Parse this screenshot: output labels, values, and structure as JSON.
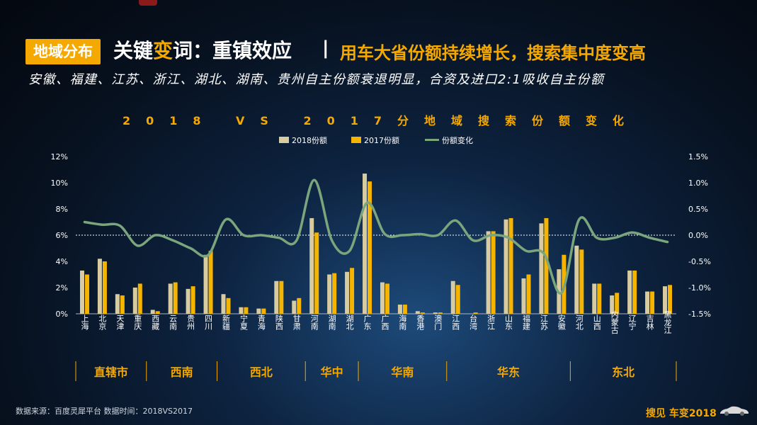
{
  "header": {
    "tag": "地域分布",
    "title_prefix": "关键",
    "title_highlight": "变",
    "title_suffix": "词：重镇效应",
    "separator": "|",
    "title_sub": "用车大省份额持续增长，搜索集中度变高",
    "subtitle": "安徽、福建、江苏、浙江、湖北、湖南、贵州自主份额衰退明显，合资及进口2:1吸收自主份额"
  },
  "footer": {
    "source": "数据来源：百度灵犀平台    数据时间：2018VS2017",
    "brand": "搜见 车变2018"
  },
  "colors": {
    "s2018": "#d8cba0",
    "s2017": "#f5b400",
    "change": "#7ba57c",
    "accent": "#f5a800"
  },
  "chart_data": {
    "type": "bar",
    "title": "2018 VS 2017分地域搜索份额变化",
    "categories": [
      "上海",
      "北京",
      "天津",
      "重庆",
      "西藏",
      "云南",
      "贵州",
      "四川",
      "新疆",
      "宁夏",
      "青海",
      "陕西",
      "甘肃",
      "河南",
      "湖南",
      "湖北",
      "广东",
      "广西",
      "海南",
      "香港",
      "澳门",
      "江西",
      "台湾",
      "浙江",
      "山东",
      "福建",
      "江苏",
      "安徽",
      "河北",
      "山西",
      "内蒙古",
      "辽宁",
      "吉林",
      "黑龙江"
    ],
    "series": [
      {
        "name": "2018份额",
        "axis": "left",
        "values": [
          3.3,
          4.2,
          1.5,
          2.0,
          0.3,
          2.3,
          1.9,
          4.5,
          1.5,
          0.5,
          0.4,
          2.5,
          1.0,
          7.3,
          3.0,
          3.2,
          10.7,
          2.4,
          0.7,
          0.2,
          0.1,
          2.5,
          0.0,
          6.3,
          7.2,
          2.7,
          6.9,
          3.4,
          5.2,
          2.3,
          1.4,
          3.3,
          1.7,
          2.1
        ]
      },
      {
        "name": "2017份额",
        "axis": "left",
        "values": [
          3.0,
          4.0,
          1.4,
          2.3,
          0.2,
          2.4,
          2.1,
          4.8,
          1.2,
          0.5,
          0.4,
          2.5,
          1.2,
          6.2,
          3.1,
          3.5,
          10.1,
          2.3,
          0.7,
          0.1,
          0.1,
          2.2,
          0.1,
          6.3,
          7.3,
          3.0,
          7.3,
          4.5,
          4.9,
          2.3,
          1.6,
          3.3,
          1.7,
          2.2
        ]
      },
      {
        "name": "份额变化",
        "axis": "right",
        "type": "line",
        "values": [
          0.25,
          0.2,
          0.18,
          -0.2,
          0.0,
          -0.1,
          -0.25,
          -0.38,
          0.3,
          0.0,
          0.0,
          -0.05,
          -0.1,
          1.05,
          -0.1,
          -0.3,
          0.62,
          0.02,
          0.0,
          0.02,
          0.0,
          0.28,
          -0.1,
          0.0,
          -0.05,
          -0.3,
          -0.35,
          -1.1,
          0.3,
          -0.05,
          -0.05,
          0.05,
          -0.05,
          -0.13
        ]
      }
    ],
    "yleft": {
      "ticks": [
        "0%",
        "2%",
        "4%",
        "6%",
        "8%",
        "10%",
        "12%"
      ],
      "range": [
        0,
        12
      ]
    },
    "yright": {
      "ticks": [
        "-1.5%",
        "-1.0%",
        "-0.5%",
        "0.0%",
        "0.5%",
        "1.0%",
        "1.5%"
      ],
      "range": [
        -1.5,
        1.5
      ]
    },
    "regions": [
      {
        "name": "直辖市",
        "start": 0,
        "end": 3
      },
      {
        "name": "西南",
        "start": 4,
        "end": 7
      },
      {
        "name": "西北",
        "start": 8,
        "end": 12
      },
      {
        "name": "华中",
        "start": 13,
        "end": 15
      },
      {
        "name": "华南",
        "start": 16,
        "end": 20
      },
      {
        "name": "华东",
        "start": 21,
        "end": 27
      },
      {
        "name": "东北",
        "start": 28,
        "end": 33
      }
    ],
    "legend_position": "top-center",
    "grid": false
  }
}
